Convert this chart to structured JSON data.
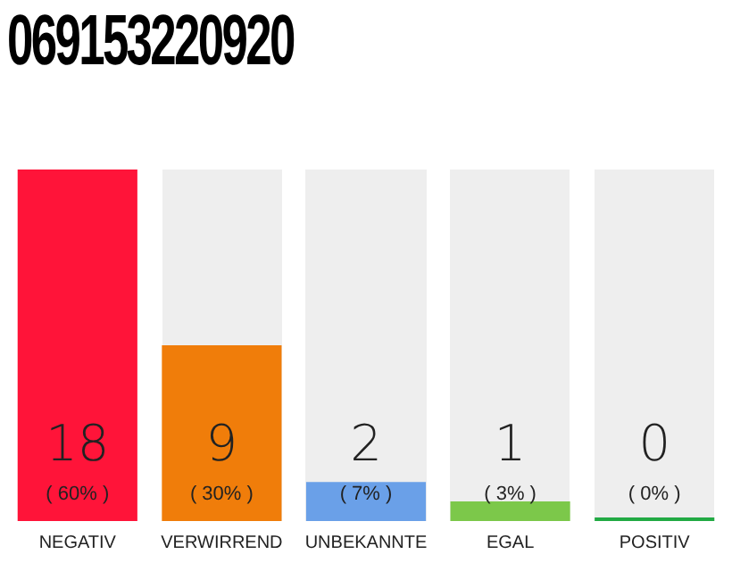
{
  "chart_data": {
    "type": "bar",
    "title": "069153220920",
    "categories": [
      "NEGATIV",
      "VERWIRREND",
      "UNBEKANNTE",
      "EGAL",
      "POSITIV"
    ],
    "values": [
      18,
      9,
      2,
      1,
      0
    ],
    "colors": [
      "#ff1439",
      "#f07d0a",
      "#6aa0e8",
      "#7cc84a",
      "#22aa44"
    ],
    "annotations": [
      "( 60% )",
      "( 30% )",
      "( 7% )",
      "( 3% )",
      "( 0% )"
    ],
    "data_labels": true,
    "grid": false,
    "legend": false
  }
}
